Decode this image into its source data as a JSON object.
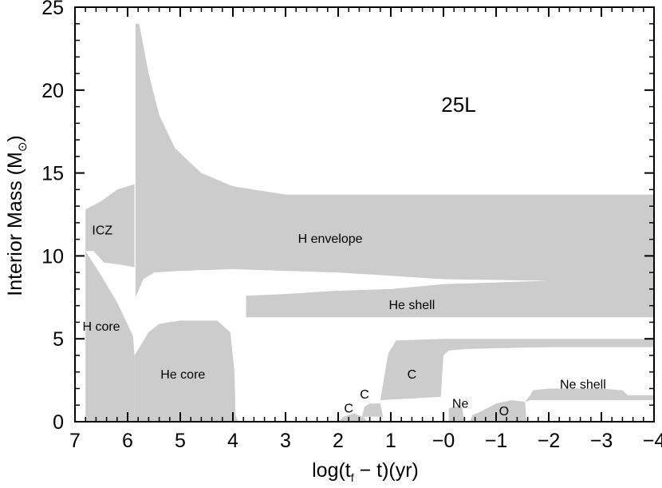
{
  "chart_data": {
    "type": "area",
    "model_label": "25L",
    "xlabel": "log(t",
    "xlabel_sub": "f",
    "xlabel_rest": " − t)(yr)",
    "ylabel": "Interior Mass (M",
    "ylabel_sub": "⊙",
    "ylabel_rest": ")",
    "xlim": [
      7,
      -4
    ],
    "ylim": [
      0,
      25
    ],
    "x_ticks": [
      7,
      6,
      5,
      4,
      3,
      2,
      1,
      0,
      -1,
      -2,
      -3,
      -4
    ],
    "x_tick_labels": [
      "7",
      "6",
      "5",
      "4",
      "3",
      "2",
      "1",
      "−0",
      "−1",
      "−2",
      "−3",
      "−4"
    ],
    "y_ticks": [
      0,
      5,
      10,
      15,
      20,
      25
    ],
    "y_tick_labels": [
      "0",
      "5",
      "10",
      "15",
      "20",
      "25"
    ],
    "fill_color": "#cccccc",
    "grid": false,
    "zones": [
      {
        "label": "ICZ",
        "label_at": [
          6.48,
          11.5
        ],
        "polygon": [
          [
            6.8,
            12.8
          ],
          [
            6.5,
            13.3
          ],
          [
            6.2,
            14.0
          ],
          [
            5.9,
            14.3
          ],
          [
            5.87,
            14.3
          ],
          [
            5.87,
            9.3
          ],
          [
            6.0,
            9.4
          ],
          [
            6.2,
            9.5
          ],
          [
            6.45,
            9.6
          ],
          [
            6.65,
            10.3
          ],
          [
            6.8,
            10.3
          ]
        ]
      },
      {
        "label": "H envelope",
        "label_at": [
          2.15,
          11.0
        ],
        "polygon": [
          [
            5.85,
            13.8
          ],
          [
            5.85,
            24.0
          ],
          [
            5.78,
            24.0
          ],
          [
            5.6,
            21.0
          ],
          [
            5.4,
            18.5
          ],
          [
            5.1,
            16.5
          ],
          [
            4.6,
            15.0
          ],
          [
            4.0,
            14.2
          ],
          [
            3.0,
            13.7
          ],
          [
            -4.0,
            13.7
          ],
          [
            -4.0,
            8.5
          ],
          [
            -2.0,
            8.5
          ],
          [
            0.0,
            8.6
          ],
          [
            1.0,
            8.8
          ],
          [
            2.0,
            9.0
          ],
          [
            3.0,
            9.1
          ],
          [
            4.0,
            9.2
          ],
          [
            5.0,
            9.1
          ],
          [
            5.5,
            9.0
          ],
          [
            5.7,
            8.6
          ],
          [
            5.85,
            7.5
          ]
        ]
      },
      {
        "label": "He shell",
        "label_at": [
          0.6,
          7.0
        ],
        "polygon": [
          [
            3.75,
            6.6
          ],
          [
            3.75,
            7.6
          ],
          [
            3.0,
            7.7
          ],
          [
            2.0,
            7.9
          ],
          [
            1.0,
            8.0
          ],
          [
            0.0,
            8.3
          ],
          [
            -1.0,
            8.4
          ],
          [
            -2.0,
            8.5
          ],
          [
            -3.0,
            8.5
          ],
          [
            -4.0,
            8.5
          ],
          [
            -4.0,
            6.3
          ],
          [
            -3.0,
            6.3
          ],
          [
            -2.0,
            6.3
          ],
          [
            -1.0,
            6.3
          ],
          [
            0.0,
            6.3
          ],
          [
            1.0,
            6.3
          ],
          [
            2.0,
            6.3
          ],
          [
            3.0,
            6.3
          ],
          [
            3.75,
            6.3
          ]
        ]
      },
      {
        "label": "H core",
        "label_at": [
          6.5,
          5.7
        ],
        "polygon": [
          [
            6.8,
            0.0
          ],
          [
            6.8,
            10.3
          ],
          [
            6.5,
            8.8
          ],
          [
            6.2,
            7.2
          ],
          [
            5.9,
            5.2
          ],
          [
            5.87,
            4.0
          ],
          [
            5.87,
            0.0
          ]
        ]
      },
      {
        "label": "He core",
        "label_at": [
          4.95,
          2.8
        ],
        "polygon": [
          [
            5.87,
            0.0
          ],
          [
            5.87,
            4.0
          ],
          [
            5.6,
            5.4
          ],
          [
            5.4,
            5.9
          ],
          [
            5.0,
            6.1
          ],
          [
            4.3,
            6.1
          ],
          [
            4.05,
            5.4
          ],
          [
            3.97,
            3.0
          ],
          [
            3.95,
            0.4
          ],
          [
            3.9,
            0.0
          ]
        ]
      },
      {
        "label": "C",
        "label_at": [
          1.8,
          0.75
        ],
        "polygon": [
          [
            2.0,
            0.0
          ],
          [
            1.9,
            0.3
          ],
          [
            1.7,
            0.5
          ],
          [
            1.5,
            0.25
          ],
          [
            1.45,
            0.0
          ]
        ]
      },
      {
        "label": "C",
        "label_at": [
          1.5,
          1.6
        ],
        "polygon": [
          [
            1.55,
            0.3
          ],
          [
            1.5,
            0.9
          ],
          [
            1.4,
            1.1
          ],
          [
            1.2,
            1.1
          ],
          [
            1.15,
            0.3
          ]
        ]
      },
      {
        "label": "C",
        "label_at": [
          0.6,
          2.8
        ],
        "polygon": [
          [
            1.2,
            1.3
          ],
          [
            1.05,
            4.1
          ],
          [
            0.9,
            4.9
          ],
          [
            0.0,
            5.0
          ],
          [
            -2.0,
            5.0
          ],
          [
            -4.0,
            5.0
          ],
          [
            -4.0,
            4.5
          ],
          [
            -2.0,
            4.5
          ],
          [
            -0.5,
            4.4
          ],
          [
            -0.1,
            4.3
          ],
          [
            0.0,
            4.0
          ],
          [
            0.05,
            1.5
          ]
        ]
      },
      {
        "label": "Ne",
        "label_at": [
          -0.32,
          1.05
        ],
        "polygon": [
          [
            -0.1,
            0.0
          ],
          [
            -0.1,
            0.8
          ],
          [
            -0.2,
            0.9
          ],
          [
            -0.35,
            0.9
          ],
          [
            -0.4,
            0.0
          ]
        ]
      },
      {
        "label": "O",
        "label_at": [
          -1.15,
          0.6
        ],
        "polygon": [
          [
            -0.5,
            0.0
          ],
          [
            -0.55,
            0.4
          ],
          [
            -0.7,
            0.6
          ],
          [
            -1.0,
            1.1
          ],
          [
            -1.3,
            1.3
          ],
          [
            -1.55,
            1.2
          ],
          [
            -1.58,
            0.0
          ]
        ]
      },
      {
        "label": "Ne shell",
        "label_at": [
          -2.65,
          2.2
        ],
        "polygon": [
          [
            -1.55,
            1.2
          ],
          [
            -1.6,
            1.4
          ],
          [
            -1.65,
            1.6
          ],
          [
            -1.7,
            1.9
          ],
          [
            -2.0,
            2.0
          ],
          [
            -3.0,
            2.0
          ],
          [
            -3.4,
            1.9
          ],
          [
            -3.5,
            1.6
          ],
          [
            -4.0,
            1.6
          ],
          [
            -4.0,
            1.3
          ],
          [
            -3.0,
            1.3
          ],
          [
            -2.0,
            1.3
          ],
          [
            -1.65,
            1.3
          ]
        ]
      }
    ]
  }
}
